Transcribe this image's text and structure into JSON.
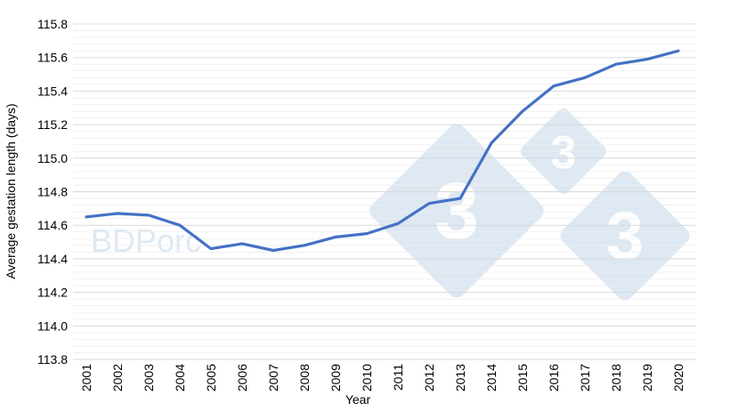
{
  "chart_data": {
    "type": "line",
    "title": "",
    "xlabel": "Year",
    "ylabel": "Average gestation length (days)",
    "x": [
      "2001",
      "2002",
      "2003",
      "2004",
      "2005",
      "2006",
      "2007",
      "2008",
      "2009",
      "2010",
      "2011",
      "2012",
      "2013",
      "2014",
      "2015",
      "2016",
      "2017",
      "2018",
      "2019",
      "2020"
    ],
    "series": [
      {
        "name": "Average gestation length",
        "color": "#4472c4",
        "values": [
          114.65,
          114.67,
          114.66,
          114.6,
          114.46,
          114.49,
          114.45,
          114.48,
          114.53,
          114.55,
          114.61,
          114.73,
          114.76,
          115.09,
          115.28,
          115.43,
          115.48,
          115.56,
          115.59,
          115.64
        ]
      }
    ],
    "ylim": [
      113.8,
      115.8
    ],
    "yticks": [
      "113.8",
      "114.0",
      "114.2",
      "114.4",
      "114.6",
      "114.8",
      "115.0",
      "115.2",
      "115.4",
      "115.6",
      "115.8"
    ],
    "grid": {
      "major": true,
      "minor": true,
      "minor_step": 0.04
    },
    "legend": "none"
  },
  "watermark": {
    "text": "BDPorc",
    "digits": [
      "3",
      "3",
      "3"
    ],
    "color": "#dde8f3"
  }
}
